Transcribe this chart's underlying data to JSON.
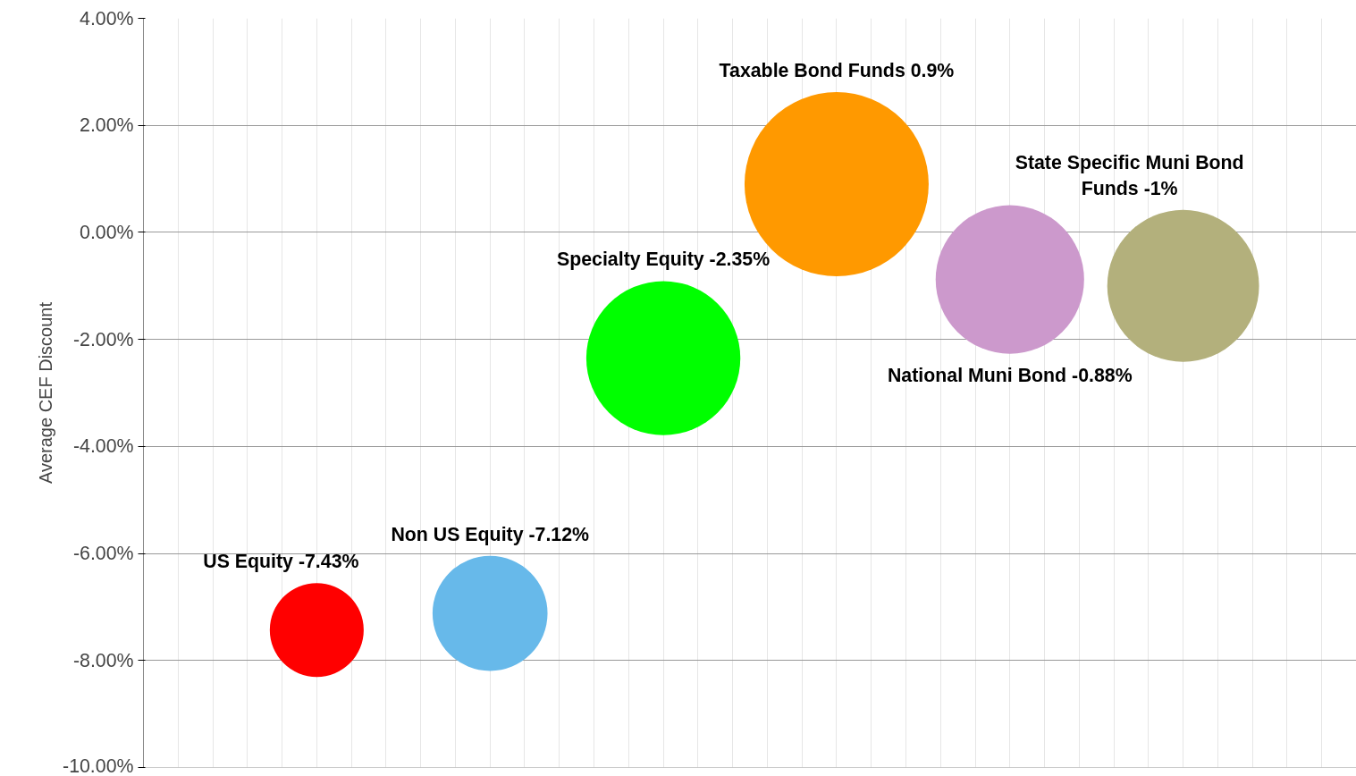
{
  "chart_data": {
    "type": "bubble",
    "ylabel": "Average CEF Discount",
    "categories": [
      null,
      null,
      null,
      null,
      null,
      null
    ],
    "values": [
      -7.43,
      -7.12,
      -2.35,
      0.9,
      -0.88,
      -1
    ],
    "sizes": [
      0.26,
      0.39,
      0.7,
      1,
      0.65,
      0.68
    ],
    "colors": [
      "#ff0000",
      "#67b9ea",
      "#00ff00",
      "#ff9900",
      "#cc99cc",
      "#b3b07c"
    ],
    "value_labels": [
      "US Equity -7.43%",
      "Non US Equity -7.12%",
      "Specialty Equity -2.35%",
      "Taxable Bond Funds 0.9%",
      "National Muni Bond -0.88%",
      "State Specific Muni Bond Funds -1%"
    ],
    "ylim": [
      -10,
      4
    ],
    "yticks": [
      {
        "value": -10,
        "label": "-10.00%"
      },
      {
        "value": -8,
        "label": "-8.00%"
      },
      {
        "value": -6,
        "label": "-6.00%"
      },
      {
        "value": -4,
        "label": "-4.00%"
      },
      {
        "value": -2,
        "label": "-2.00%"
      },
      {
        "value": 0,
        "label": "0.00%"
      },
      {
        "value": 2,
        "label": "2.00%"
      },
      {
        "value": 4,
        "label": "4.00%"
      }
    ],
    "grid": true
  }
}
